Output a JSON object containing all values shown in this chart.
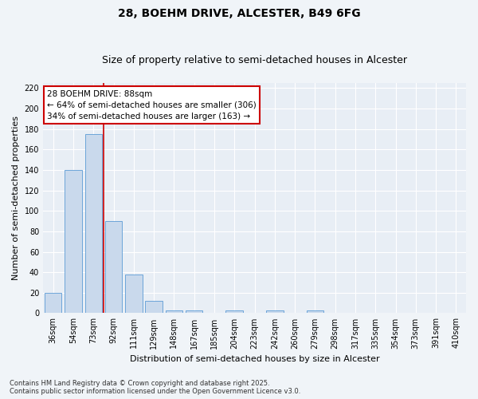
{
  "title": "28, BOEHM DRIVE, ALCESTER, B49 6FG",
  "subtitle": "Size of property relative to semi-detached houses in Alcester",
  "xlabel": "Distribution of semi-detached houses by size in Alcester",
  "ylabel": "Number of semi-detached properties",
  "bar_labels": [
    "36sqm",
    "54sqm",
    "73sqm",
    "92sqm",
    "111sqm",
    "129sqm",
    "148sqm",
    "167sqm",
    "185sqm",
    "204sqm",
    "223sqm",
    "242sqm",
    "260sqm",
    "279sqm",
    "298sqm",
    "317sqm",
    "335sqm",
    "354sqm",
    "373sqm",
    "391sqm",
    "410sqm"
  ],
  "bar_values": [
    20,
    140,
    175,
    90,
    38,
    12,
    3,
    3,
    0,
    3,
    0,
    3,
    0,
    3,
    0,
    0,
    0,
    0,
    0,
    0,
    0
  ],
  "bar_color": "#c9d9ec",
  "bar_edge_color": "#5b9bd5",
  "vline_color": "#cc0000",
  "annotation_title": "28 BOEHM DRIVE: 88sqm",
  "annotation_line1": "← 64% of semi-detached houses are smaller (306)",
  "annotation_line2": "34% of semi-detached houses are larger (163) →",
  "annotation_box_color": "#cc0000",
  "ylim": [
    0,
    225
  ],
  "yticks": [
    0,
    20,
    40,
    60,
    80,
    100,
    120,
    140,
    160,
    180,
    200,
    220
  ],
  "fig_bg_color": "#f0f4f8",
  "plot_bg_color": "#e8eef5",
  "grid_color": "#ffffff",
  "footnote1": "Contains HM Land Registry data © Crown copyright and database right 2025.",
  "footnote2": "Contains public sector information licensed under the Open Government Licence v3.0.",
  "title_fontsize": 10,
  "subtitle_fontsize": 9,
  "tick_fontsize": 7,
  "ylabel_fontsize": 8,
  "xlabel_fontsize": 8,
  "annot_fontsize": 7.5,
  "footnote_fontsize": 6
}
